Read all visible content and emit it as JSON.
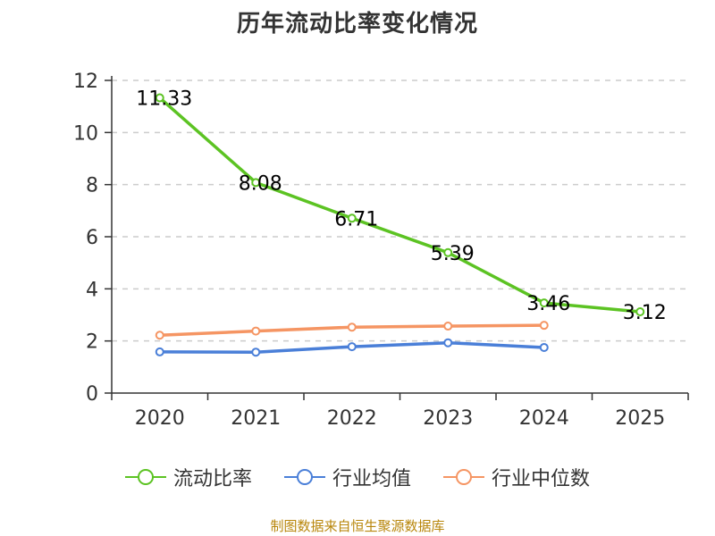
{
  "chart_data": {
    "type": "line",
    "title": "历年流动比率变化情况",
    "categories": [
      "2020",
      "2021",
      "2022",
      "2023",
      "2024",
      "2025"
    ],
    "ylim": [
      0,
      12
    ],
    "yticks": [
      0,
      2,
      4,
      6,
      8,
      10,
      12
    ],
    "grid": true,
    "legend_position": "bottom",
    "series": [
      {
        "name": "流动比率",
        "color": "#5cc323",
        "values": [
          11.33,
          8.08,
          6.71,
          5.39,
          3.46,
          3.12
        ],
        "labels": [
          "11.33",
          "8.08",
          "6.71",
          "5.39",
          "3.46",
          "3.12"
        ]
      },
      {
        "name": "行业均值",
        "color": "#4a7fd8",
        "values": [
          1.58,
          1.57,
          1.78,
          1.93,
          1.75,
          null
        ]
      },
      {
        "name": "行业中位数",
        "color": "#f59563",
        "values": [
          2.22,
          2.38,
          2.53,
          2.57,
          2.6,
          null
        ]
      }
    ]
  },
  "footer": {
    "source": "制图数据来自恒生聚源数据库"
  }
}
